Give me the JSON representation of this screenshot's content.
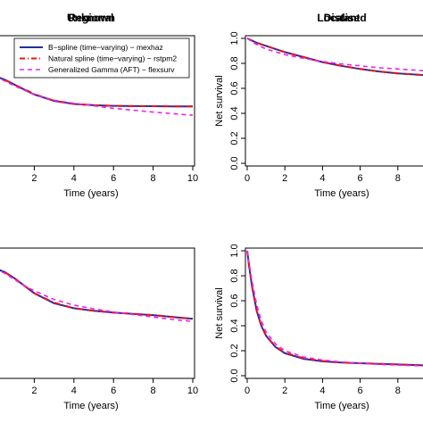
{
  "chart_data": [
    {
      "type": "line",
      "title": "Unknown",
      "xlabel": "Time (years)",
      "ylabel": "",
      "xticks": [
        "2",
        "4",
        "6",
        "8",
        "10"
      ],
      "yticks": [],
      "xlim": [
        0,
        10
      ],
      "ylim": [
        0,
        1
      ],
      "legend": {
        "position": "top-right",
        "entries": [
          "B−spline (time−varying) − mexhaz",
          "Natural spline (time−varying) − rstpm2",
          "Generalized Gamma (AFT) − flexsurv"
        ]
      },
      "series": [
        {
          "x": [
            0,
            0.5,
            1,
            2,
            3,
            4,
            5,
            6,
            7,
            8,
            9,
            10
          ],
          "values": [
            0.7,
            0.67,
            0.63,
            0.55,
            0.5,
            0.475,
            0.465,
            0.46,
            0.458,
            0.457,
            0.456,
            0.455
          ]
        },
        {
          "x": [
            0,
            0.5,
            1,
            2,
            3,
            4,
            5,
            6,
            7,
            8,
            9,
            10
          ],
          "values": [
            0.7,
            0.67,
            0.63,
            0.555,
            0.5,
            0.475,
            0.465,
            0.46,
            0.458,
            0.457,
            0.456,
            0.455
          ]
        },
        {
          "x": [
            0,
            0.5,
            1,
            2,
            3,
            4,
            5,
            6,
            7,
            8,
            9,
            10
          ],
          "values": [
            0.7,
            0.66,
            0.62,
            0.55,
            0.505,
            0.48,
            0.46,
            0.44,
            0.425,
            0.41,
            0.397,
            0.385
          ]
        }
      ]
    },
    {
      "type": "line",
      "title": "Localised",
      "xlabel": "Time (years)",
      "ylabel": "Net survival",
      "xticks": [
        "0",
        "2",
        "4",
        "6",
        "8"
      ],
      "yticks": [
        "0.0",
        "0.2",
        "0.4",
        "0.6",
        "0.8",
        "1.0"
      ],
      "xlim": [
        0,
        10
      ],
      "ylim": [
        0,
        1
      ],
      "series": [
        {
          "x": [
            0,
            0.5,
            1,
            2,
            3,
            4,
            5,
            6,
            7,
            8,
            9,
            10
          ],
          "values": [
            1.0,
            0.965,
            0.94,
            0.89,
            0.85,
            0.81,
            0.78,
            0.755,
            0.735,
            0.72,
            0.71,
            0.7
          ]
        },
        {
          "x": [
            0,
            0.5,
            1,
            2,
            3,
            4,
            5,
            6,
            7,
            8,
            9,
            10
          ],
          "values": [
            1.0,
            0.965,
            0.94,
            0.89,
            0.85,
            0.81,
            0.78,
            0.755,
            0.735,
            0.72,
            0.71,
            0.7
          ]
        },
        {
          "x": [
            0,
            0.5,
            1,
            2,
            3,
            4,
            5,
            6,
            7,
            8,
            9,
            10
          ],
          "values": [
            1.0,
            0.95,
            0.915,
            0.87,
            0.84,
            0.815,
            0.795,
            0.78,
            0.765,
            0.755,
            0.745,
            0.735
          ]
        }
      ]
    },
    {
      "type": "line",
      "title": "Regional",
      "xlabel": "Time (years)",
      "ylabel": "",
      "xticks": [
        "2",
        "4",
        "6",
        "8",
        "10"
      ],
      "yticks": [],
      "xlim": [
        0,
        10
      ],
      "ylim": [
        0,
        1
      ],
      "series": [
        {
          "x": [
            0,
            0.5,
            1,
            1.5,
            2,
            3,
            4,
            5,
            6,
            7,
            8,
            9,
            10
          ],
          "values": [
            0.86,
            0.83,
            0.78,
            0.72,
            0.66,
            0.58,
            0.54,
            0.52,
            0.505,
            0.495,
            0.485,
            0.47,
            0.455
          ]
        },
        {
          "x": [
            0,
            0.5,
            1,
            1.5,
            2,
            3,
            4,
            5,
            6,
            7,
            8,
            9,
            10
          ],
          "values": [
            0.86,
            0.83,
            0.78,
            0.72,
            0.66,
            0.585,
            0.54,
            0.52,
            0.505,
            0.495,
            0.485,
            0.47,
            0.455
          ]
        },
        {
          "x": [
            0,
            0.5,
            1,
            1.5,
            2,
            3,
            4,
            5,
            6,
            7,
            8,
            9,
            10
          ],
          "values": [
            0.86,
            0.82,
            0.77,
            0.72,
            0.68,
            0.61,
            0.565,
            0.535,
            0.51,
            0.49,
            0.47,
            0.45,
            0.435
          ]
        }
      ]
    },
    {
      "type": "line",
      "title": "Distant",
      "xlabel": "Time (years)",
      "ylabel": "Net survival",
      "xticks": [
        "0",
        "2",
        "4",
        "6",
        "8"
      ],
      "yticks": [
        "0.0",
        "0.2",
        "0.4",
        "0.6",
        "0.8",
        "1.0"
      ],
      "xlim": [
        0,
        10
      ],
      "ylim": [
        0,
        1
      ],
      "series": [
        {
          "x": [
            0,
            0.1,
            0.25,
            0.5,
            0.75,
            1,
            1.5,
            2,
            3,
            4,
            5,
            6,
            7,
            8,
            9,
            10
          ],
          "values": [
            1.0,
            0.88,
            0.72,
            0.52,
            0.4,
            0.32,
            0.23,
            0.18,
            0.135,
            0.115,
            0.105,
            0.1,
            0.095,
            0.09,
            0.085,
            0.08
          ]
        },
        {
          "x": [
            0,
            0.1,
            0.25,
            0.5,
            0.75,
            1,
            1.5,
            2,
            3,
            4,
            5,
            6,
            7,
            8,
            9,
            10
          ],
          "values": [
            1.0,
            0.88,
            0.72,
            0.52,
            0.4,
            0.32,
            0.235,
            0.185,
            0.14,
            0.118,
            0.106,
            0.1,
            0.095,
            0.09,
            0.085,
            0.08
          ]
        },
        {
          "x": [
            0,
            0.1,
            0.25,
            0.5,
            0.75,
            1,
            1.5,
            2,
            3,
            4,
            5,
            6,
            7,
            8,
            9,
            10
          ],
          "values": [
            1.0,
            0.9,
            0.76,
            0.57,
            0.44,
            0.35,
            0.255,
            0.2,
            0.15,
            0.125,
            0.11,
            0.1,
            0.09,
            0.085,
            0.08,
            0.075
          ]
        }
      ]
    }
  ],
  "colors": {
    "bspline": "#1f2fa0",
    "natural": "#ee1111",
    "gamma": "#ee22ee"
  }
}
